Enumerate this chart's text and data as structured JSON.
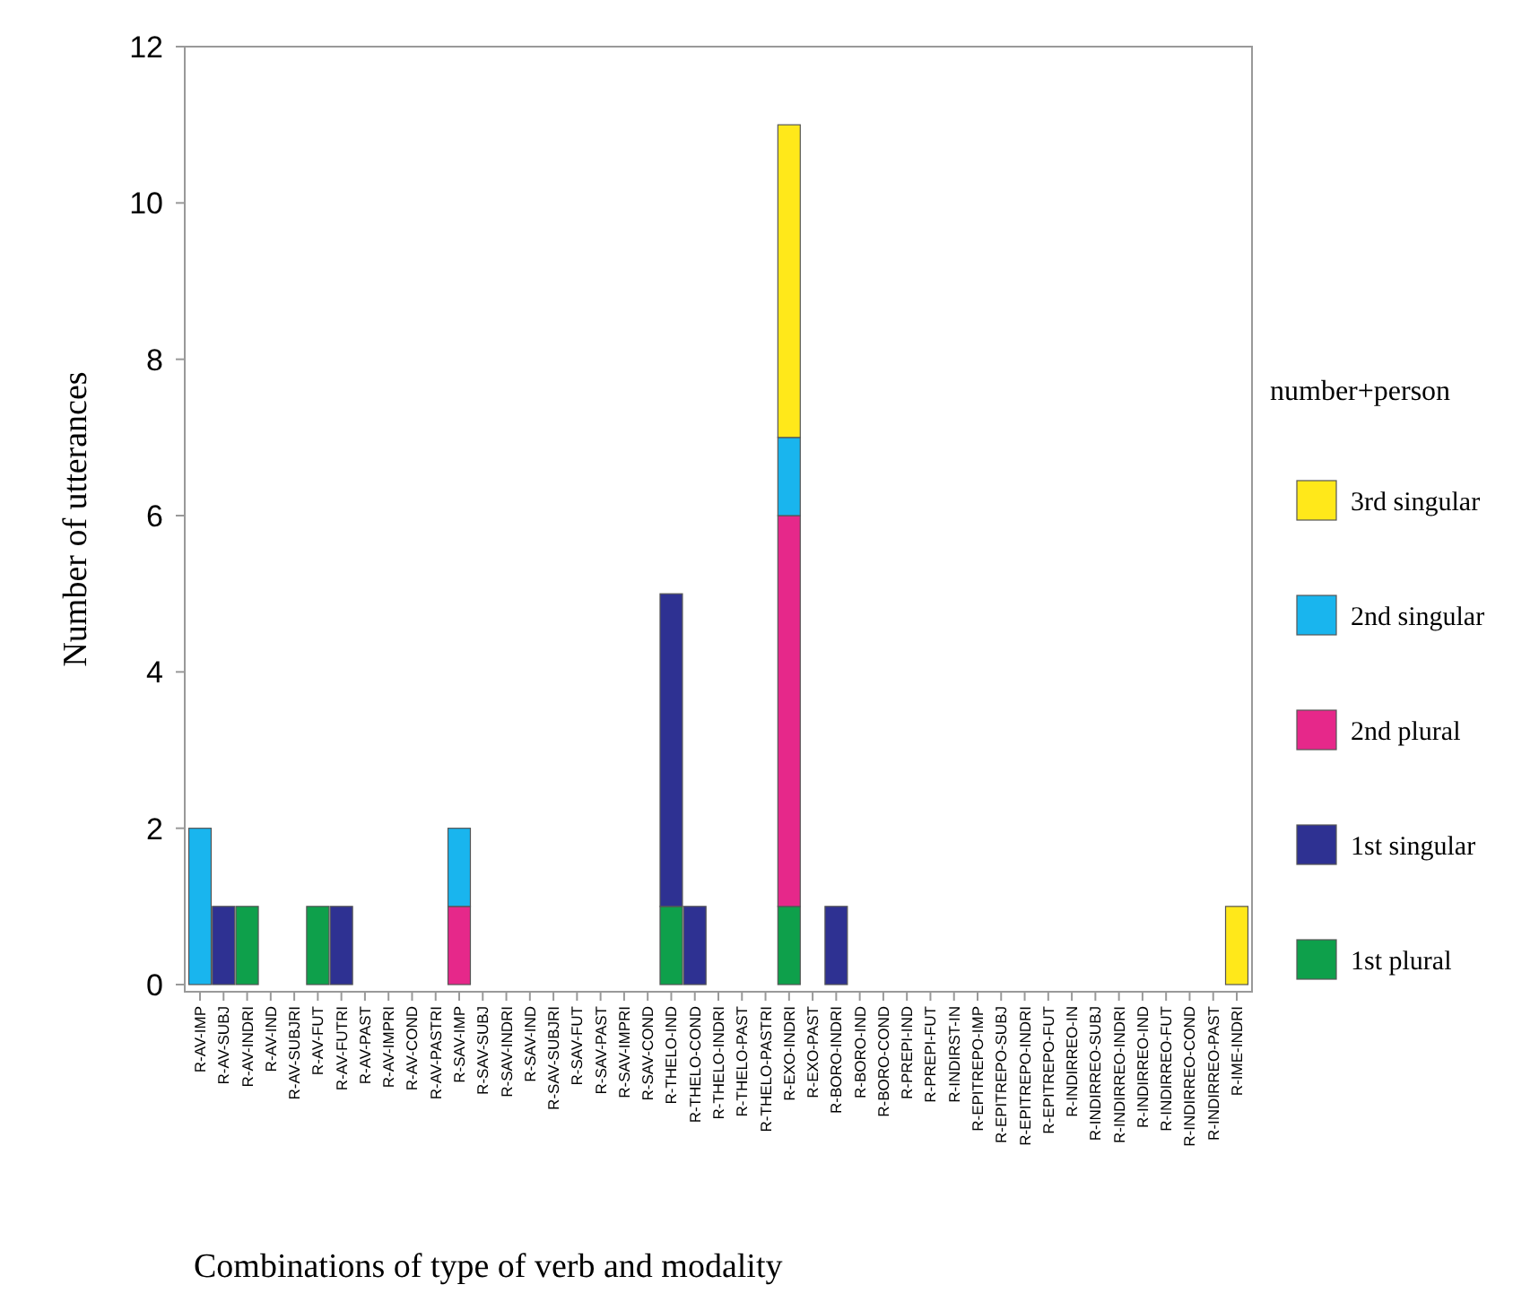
{
  "chart_data": {
    "type": "bar",
    "stacked": true,
    "xlabel": "Combinations of type of verb and modality",
    "ylabel": "Number of utterances",
    "legend_title": "number+person",
    "legend": "right",
    "grid": false,
    "categories": [
      "R-AV-IMP",
      "R-AV-SUBJ",
      "R-AV-INDRI",
      "R-AV-IND",
      "R-AV-SUBJRI",
      "R-AV-FUT",
      "R-AV-FUTRI",
      "R-AV-PAST",
      "R-AV-IMPRI",
      "R-AV-COND",
      "R-AV-PASTRI",
      "R-SAV-IMP",
      "R-SAV-SUBJ",
      "R-SAV-INDRI",
      "R-SAV-IND",
      "R-SAV-SUBJRI",
      "R-SAV-FUT",
      "R-SAV-PAST",
      "R-SAV-IMPRI",
      "R-SAV-COND",
      "R-THELO-IND",
      "R-THELO-COND",
      "R-THELO-INDRI",
      "R-THELO-PAST",
      "R-THELO-PASTRI",
      "R-EXO-INDRI",
      "R-EXO-PAST",
      "R-BORO-INDRI",
      "R-BORO-IND",
      "R-BORO-COND",
      "R-PREPI-IND",
      "R-PREPI-FUT",
      "R-INDIRST-IN",
      "R-EPITREPO-IMP",
      "R-EPITREPO-SUBJ",
      "R-EPITREPO-INDRI",
      "R-EPITREPO-FUT",
      "R-INDIRREO-IN",
      "R-INDIRREO-SUBJ",
      "R-INDIRREO-INDRI",
      "R-INDIRREO-IND",
      "R-INDIRREO-FUT",
      "R-INDIRREO-COND",
      "R-INDIRREO-PAST",
      "R-IME-INDRI"
    ],
    "ylim": [
      0,
      12
    ],
    "yticks": [
      0,
      2,
      4,
      6,
      8,
      10,
      12
    ],
    "series": [
      {
        "name": "1st plural",
        "color": "#0ea04b",
        "values": [
          0,
          0,
          1,
          0,
          0,
          1,
          0,
          0,
          0,
          0,
          0,
          0,
          0,
          0,
          0,
          0,
          0,
          0,
          0,
          0,
          1,
          0,
          0,
          0,
          0,
          1,
          0,
          0,
          0,
          0,
          0,
          0,
          0,
          0,
          0,
          0,
          0,
          0,
          0,
          0,
          0,
          0,
          0,
          0,
          0
        ]
      },
      {
        "name": "1st singular",
        "color": "#2e3192",
        "values": [
          0,
          1,
          0,
          0,
          0,
          0,
          1,
          0,
          0,
          0,
          0,
          0,
          0,
          0,
          0,
          0,
          0,
          0,
          0,
          0,
          4,
          1,
          0,
          0,
          0,
          0,
          0,
          1,
          0,
          0,
          0,
          0,
          0,
          0,
          0,
          0,
          0,
          0,
          0,
          0,
          0,
          0,
          0,
          0,
          0
        ]
      },
      {
        "name": "2nd plural",
        "color": "#e6288a",
        "values": [
          0,
          0,
          0,
          0,
          0,
          0,
          0,
          0,
          0,
          0,
          0,
          1,
          0,
          0,
          0,
          0,
          0,
          0,
          0,
          0,
          0,
          0,
          0,
          0,
          0,
          5,
          0,
          0,
          0,
          0,
          0,
          0,
          0,
          0,
          0,
          0,
          0,
          0,
          0,
          0,
          0,
          0,
          0,
          0,
          0
        ]
      },
      {
        "name": "2nd singular",
        "color": "#19b5ee",
        "values": [
          2,
          0,
          0,
          0,
          0,
          0,
          0,
          0,
          0,
          0,
          0,
          1,
          0,
          0,
          0,
          0,
          0,
          0,
          0,
          0,
          0,
          0,
          0,
          0,
          0,
          1,
          0,
          0,
          0,
          0,
          0,
          0,
          0,
          0,
          0,
          0,
          0,
          0,
          0,
          0,
          0,
          0,
          0,
          0,
          0
        ]
      },
      {
        "name": "3rd singular",
        "color": "#ffe81a",
        "values": [
          0,
          0,
          0,
          0,
          0,
          0,
          0,
          0,
          0,
          0,
          0,
          0,
          0,
          0,
          0,
          0,
          0,
          0,
          0,
          0,
          0,
          0,
          0,
          0,
          0,
          4,
          0,
          0,
          0,
          0,
          0,
          0,
          0,
          0,
          0,
          0,
          0,
          0,
          0,
          0,
          0,
          0,
          0,
          0,
          1
        ]
      }
    ]
  }
}
